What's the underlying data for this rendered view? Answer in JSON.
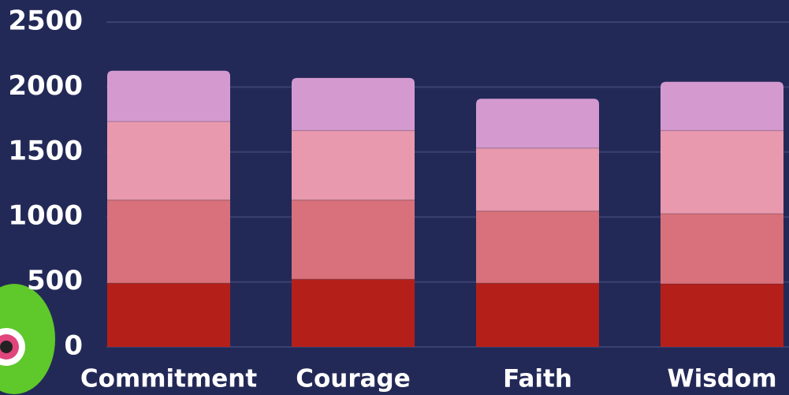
{
  "chart_data": {
    "type": "stacked_bar",
    "categories": [
      "Commitment",
      "Courage",
      "Faith",
      "Wisdom"
    ],
    "series": [
      {
        "color": "#b51f1a",
        "values": [
          490,
          520,
          490,
          485
        ]
      },
      {
        "color": "#d8717b",
        "values": [
          640,
          610,
          555,
          540
        ]
      },
      {
        "color": "#e899ae",
        "values": [
          605,
          535,
          485,
          640
        ]
      },
      {
        "color": "#d49ad0",
        "values": [
          390,
          405,
          380,
          375
        ]
      }
    ],
    "ylim": [
      0,
      2500
    ],
    "yticks": [
      0,
      500,
      1000,
      1500,
      2000,
      2500
    ],
    "grid": true
  }
}
